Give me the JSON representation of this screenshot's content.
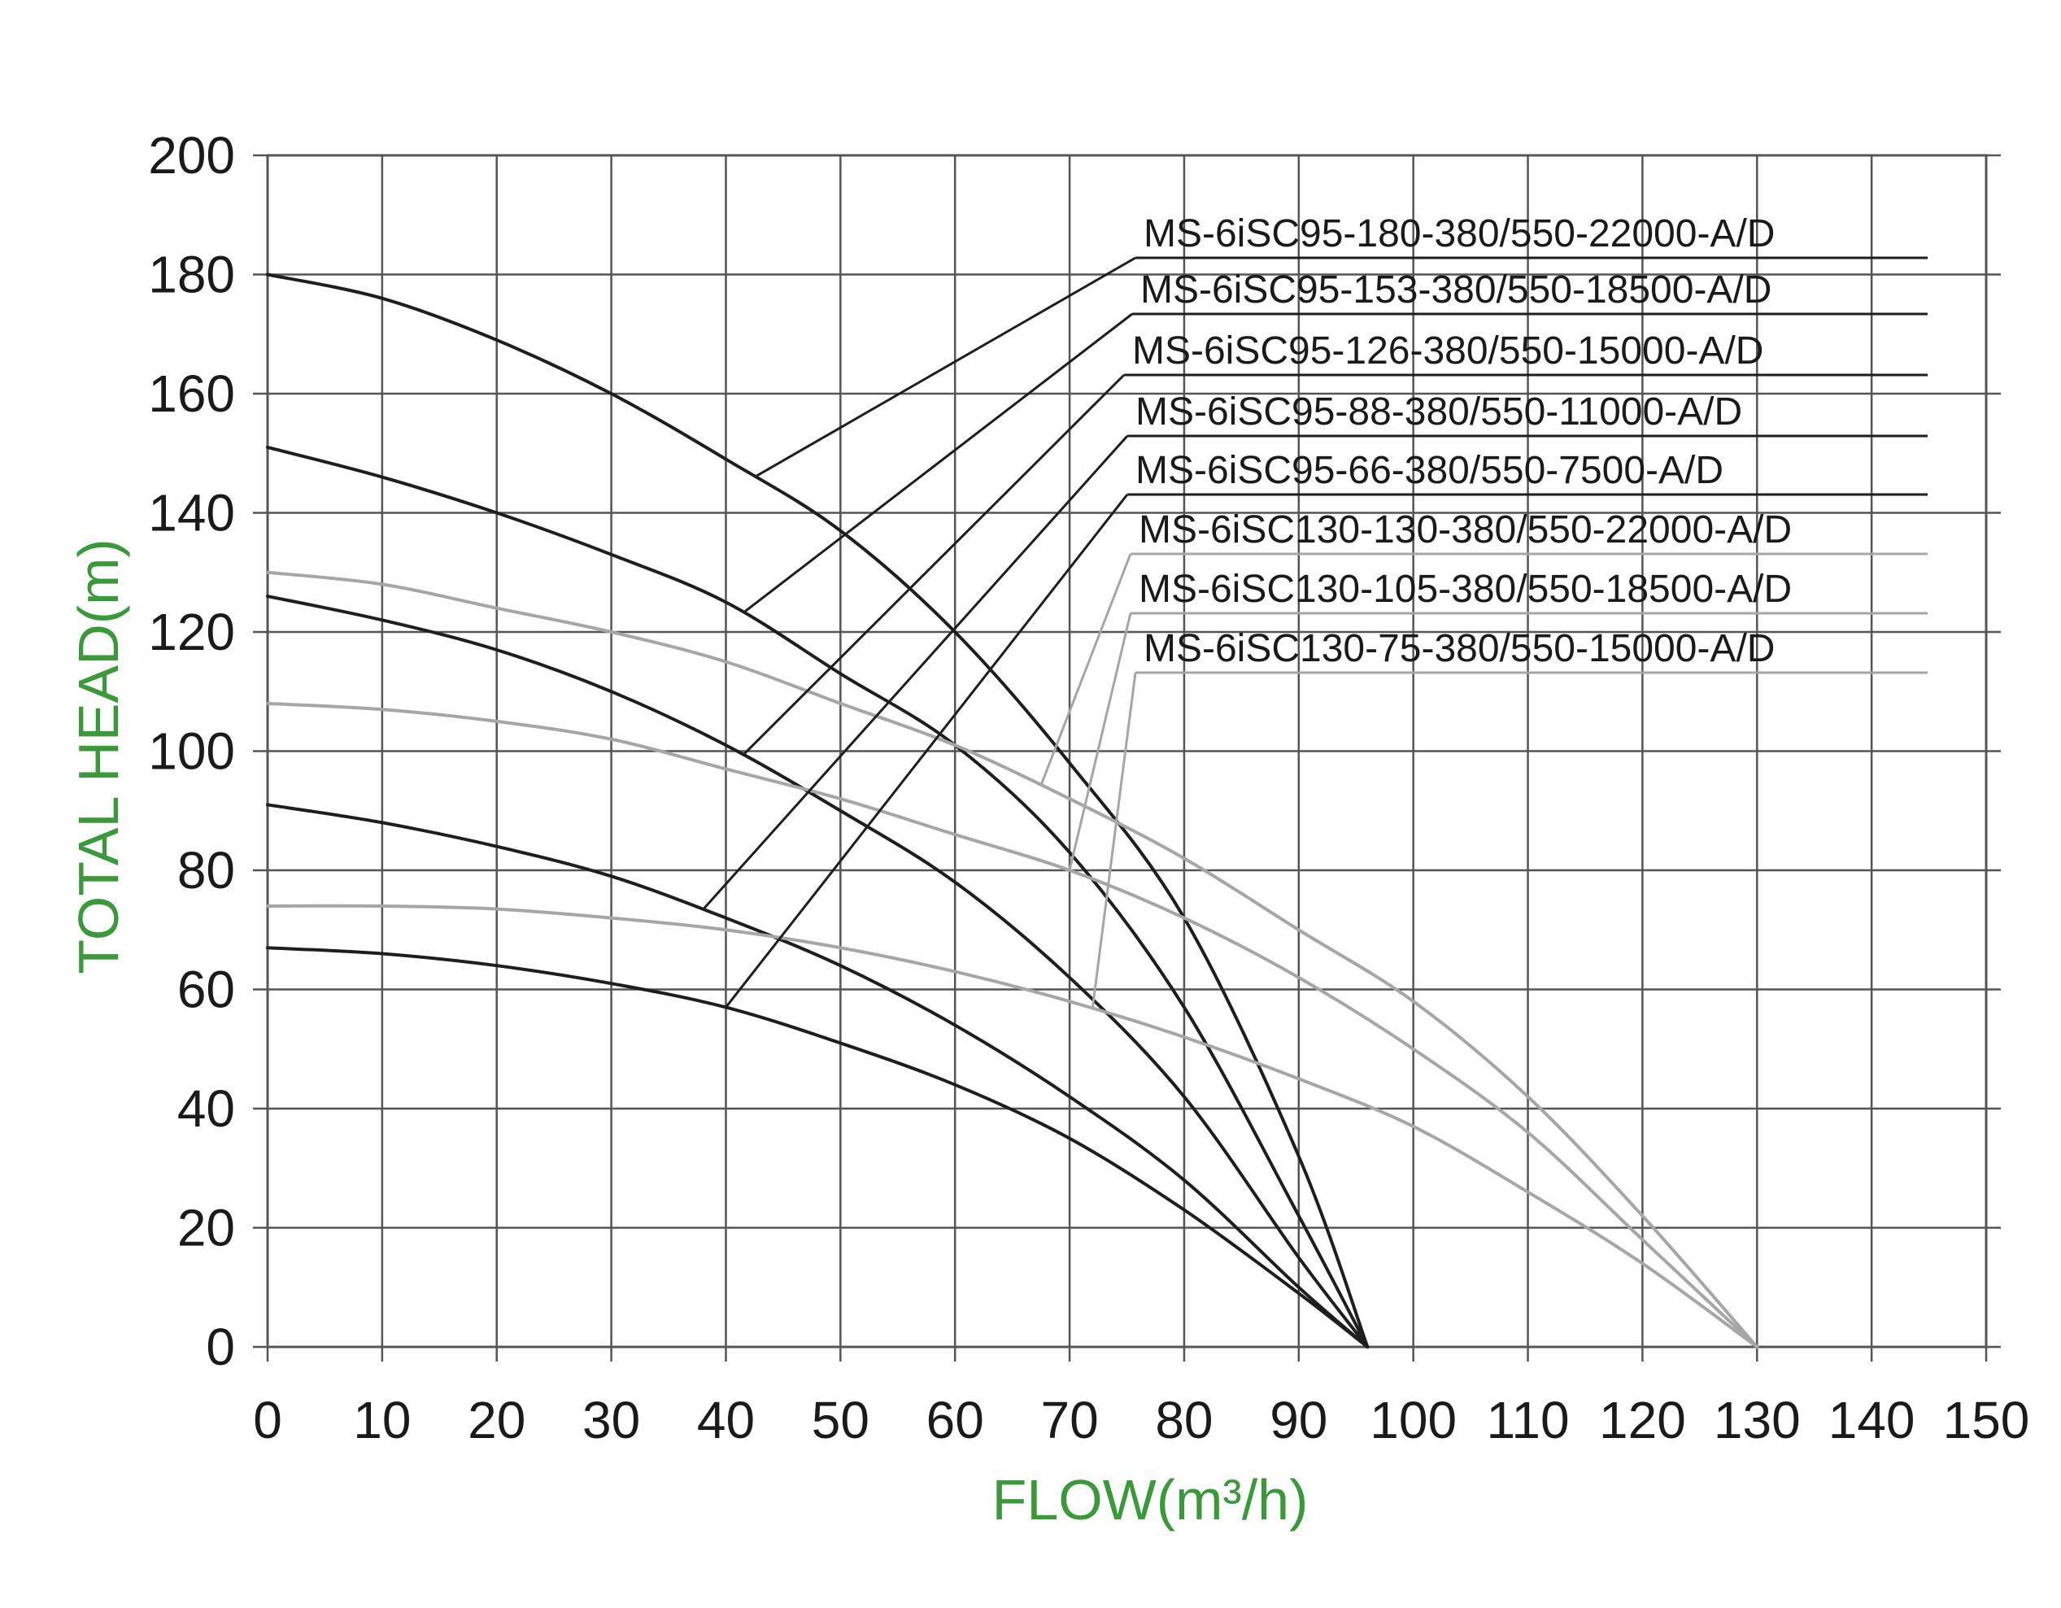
{
  "chart_data": {
    "type": "line",
    "title": "",
    "xlabel": "FLOW(m³/h)",
    "ylabel": "TOTAL HEAD(m)",
    "xlim": [
      0,
      150
    ],
    "ylim": [
      0,
      200
    ],
    "x_ticks": [
      0,
      10,
      20,
      30,
      40,
      50,
      60,
      70,
      80,
      90,
      100,
      110,
      120,
      130,
      140,
      150
    ],
    "y_ticks": [
      0,
      20,
      40,
      60,
      80,
      100,
      120,
      140,
      160,
      180,
      200
    ],
    "grid": true,
    "legend_position": "top-right",
    "colors": {
      "dark": "#1e1e1e",
      "light": "#a6a6a6",
      "grid": "#555555",
      "axis_title": "#3a9a3a"
    },
    "series": [
      {
        "name": "MS-6iSC95-180-380/550-22000-A/D",
        "color": "dark",
        "x": [
          0,
          10,
          20,
          30,
          40,
          50,
          60,
          70,
          80,
          90,
          96
        ],
        "y": [
          180,
          176,
          169,
          160,
          149,
          137,
          120,
          98,
          72,
          32,
          0
        ],
        "pointer_flow": 42.5
      },
      {
        "name": "MS-6iSC95-153-380/550-18500-A/D",
        "color": "dark",
        "x": [
          0,
          10,
          20,
          30,
          40,
          50,
          60,
          70,
          80,
          90,
          96
        ],
        "y": [
          151,
          146,
          140,
          133,
          125,
          113,
          101,
          83,
          57,
          22,
          0
        ],
        "pointer_flow": 41.5
      },
      {
        "name": "MS-6iSC95-126-380/550-15000-A/D",
        "color": "dark",
        "x": [
          0,
          10,
          20,
          30,
          40,
          50,
          60,
          70,
          80,
          90,
          96
        ],
        "y": [
          126,
          122,
          117,
          110,
          101,
          90,
          78,
          62,
          42,
          15,
          0
        ],
        "pointer_flow": 41.5
      },
      {
        "name": "MS-6iSC95-88-380/550-11000-A/D",
        "color": "dark",
        "x": [
          0,
          10,
          20,
          30,
          40,
          50,
          60,
          70,
          80,
          90,
          96
        ],
        "y": [
          91,
          88,
          84,
          79,
          72,
          64,
          54,
          42,
          28,
          10,
          0
        ],
        "pointer_flow": 38
      },
      {
        "name": "MS-6iSC95-66-380/550-7500-A/D",
        "color": "dark",
        "x": [
          0,
          10,
          20,
          30,
          40,
          50,
          60,
          70,
          80,
          90,
          96
        ],
        "y": [
          67,
          66,
          64,
          61,
          57,
          51,
          44,
          35,
          23,
          9,
          0
        ],
        "pointer_flow": 40
      },
      {
        "name": "MS-6iSC130-130-380/550-22000-A/D",
        "color": "light",
        "x": [
          0,
          10,
          20,
          30,
          40,
          50,
          60,
          70,
          80,
          90,
          100,
          110,
          120,
          130
        ],
        "y": [
          130,
          128,
          124,
          120,
          115,
          108,
          101,
          92,
          82,
          70,
          58,
          42,
          22,
          0
        ],
        "pointer_flow": 67.5
      },
      {
        "name": "MS-6iSC130-105-380/550-18500-A/D",
        "color": "light",
        "x": [
          0,
          10,
          20,
          30,
          40,
          50,
          60,
          70,
          80,
          90,
          100,
          110,
          120,
          130
        ],
        "y": [
          108,
          107,
          105,
          102,
          97,
          92,
          86,
          80,
          72,
          62,
          50,
          36,
          18,
          0
        ],
        "pointer_flow": 70
      },
      {
        "name": "MS-6iSC130-75-380/550-15000-A/D",
        "color": "light",
        "x": [
          0,
          10,
          20,
          30,
          40,
          50,
          60,
          70,
          80,
          90,
          100,
          110,
          120,
          130
        ],
        "y": [
          74,
          74,
          73.5,
          72,
          70,
          67,
          63,
          58,
          52,
          45,
          37,
          26,
          14,
          0
        ],
        "pointer_flow": 72
      }
    ]
  }
}
